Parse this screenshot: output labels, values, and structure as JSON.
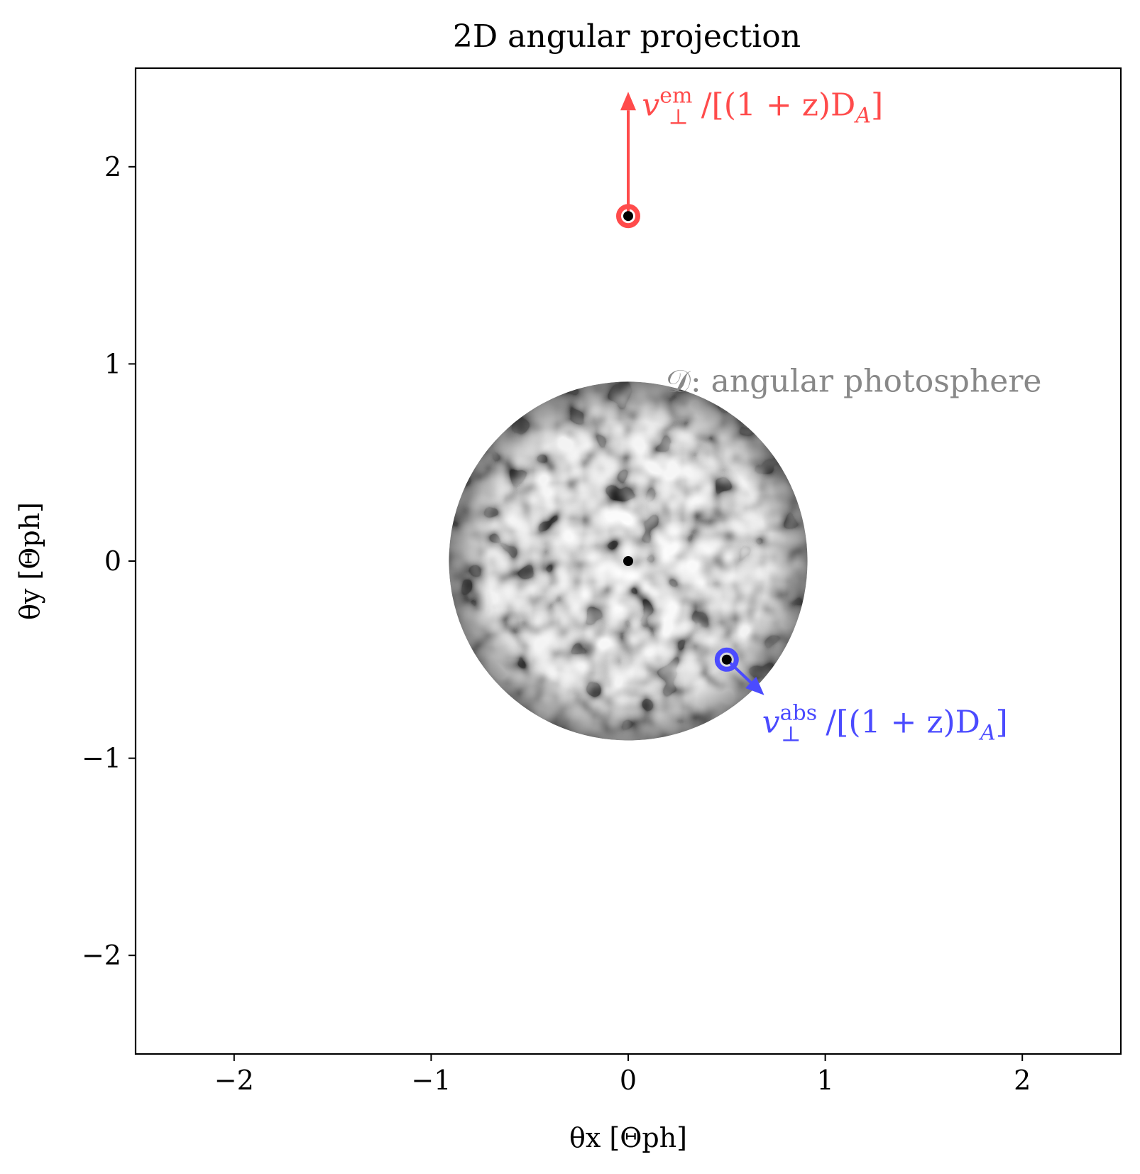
{
  "chart_data": {
    "type": "scatter",
    "title": "2D angular projection",
    "xlabel": "θx [Θph]",
    "ylabel": "θy [Θph]",
    "xlim": [
      -2.5,
      2.5
    ],
    "ylim": [
      -2.5,
      2.5
    ],
    "xticks": [
      -2,
      -1,
      0,
      1,
      2
    ],
    "yticks": [
      -2,
      -1,
      0,
      1,
      2
    ],
    "xtick_labels": [
      "−2",
      "−1",
      "0",
      "1",
      "2"
    ],
    "ytick_labels": [
      "−2",
      "−1",
      "0",
      "1",
      "2"
    ],
    "grid": false,
    "legend": "none",
    "disk": {
      "center": [
        0,
        0
      ],
      "radius": 0.91,
      "label": "𝒟: angular photosphere",
      "label_color": "#888888"
    },
    "points": [
      {
        "name": "emitter",
        "x": 0.0,
        "y": 1.75,
        "ring_color": "#ff4b4b"
      },
      {
        "name": "center",
        "x": 0.0,
        "y": 0.0
      },
      {
        "name": "absorber",
        "x": 0.5,
        "y": -0.5,
        "ring_color": "#4b4bff"
      }
    ],
    "arrows": [
      {
        "name": "v-em",
        "from": [
          0.0,
          1.75
        ],
        "to": [
          0.0,
          2.38
        ],
        "color": "#ff4b4b",
        "label": "v⊥em/[(1 + z)DA]"
      },
      {
        "name": "v-abs",
        "from": [
          0.5,
          -0.5
        ],
        "to": [
          0.69,
          -0.68
        ],
        "color": "#4b4bff",
        "label": "v⊥abs/[(1 + z)DA]"
      }
    ]
  }
}
